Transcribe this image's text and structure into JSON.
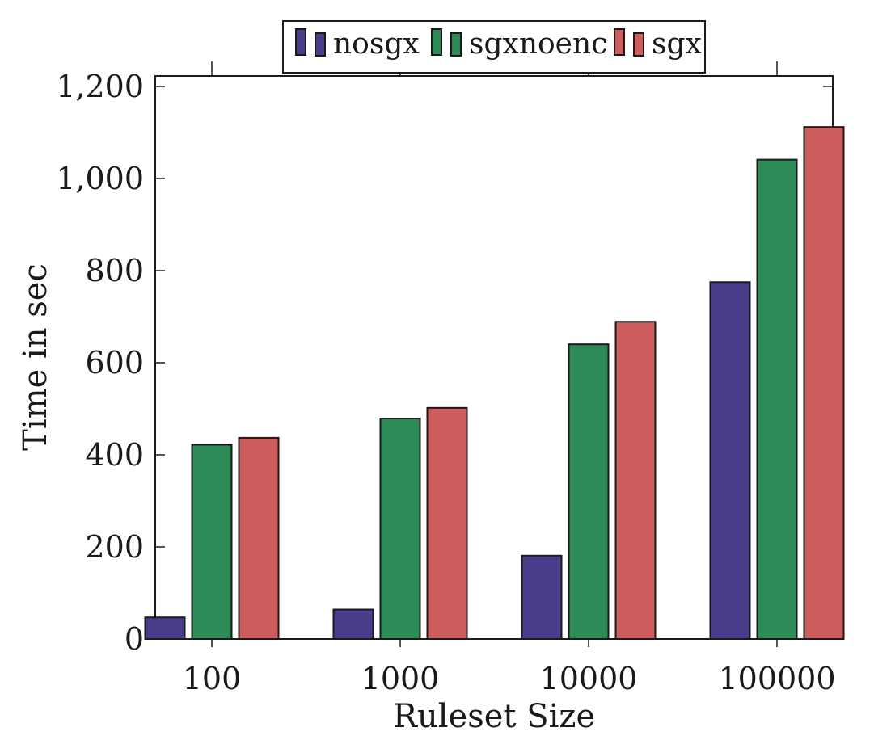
{
  "chart_data": {
    "type": "bar",
    "title": "",
    "xlabel": "Ruleset Size",
    "ylabel": "Time in sec",
    "categories": [
      "100",
      "1000",
      "10000",
      "100000"
    ],
    "ylim": [
      0,
      1200
    ],
    "yticks": [
      0,
      200,
      400,
      600,
      800,
      1000,
      1200
    ],
    "ytick_labels": [
      "0",
      "200",
      "400",
      "600",
      "800",
      "1,000",
      "1,200"
    ],
    "grid": false,
    "legend_position": "top-center",
    "series": [
      {
        "name": "nosgx",
        "color": "#493C8A",
        "values": [
          47,
          64,
          181,
          775
        ]
      },
      {
        "name": "sgxnoenc",
        "color": "#2E8B57",
        "values": [
          422,
          479,
          640,
          1041
        ]
      },
      {
        "name": "sgx",
        "color": "#CD5C5C",
        "values": [
          437,
          502,
          689,
          1112
        ]
      }
    ]
  }
}
